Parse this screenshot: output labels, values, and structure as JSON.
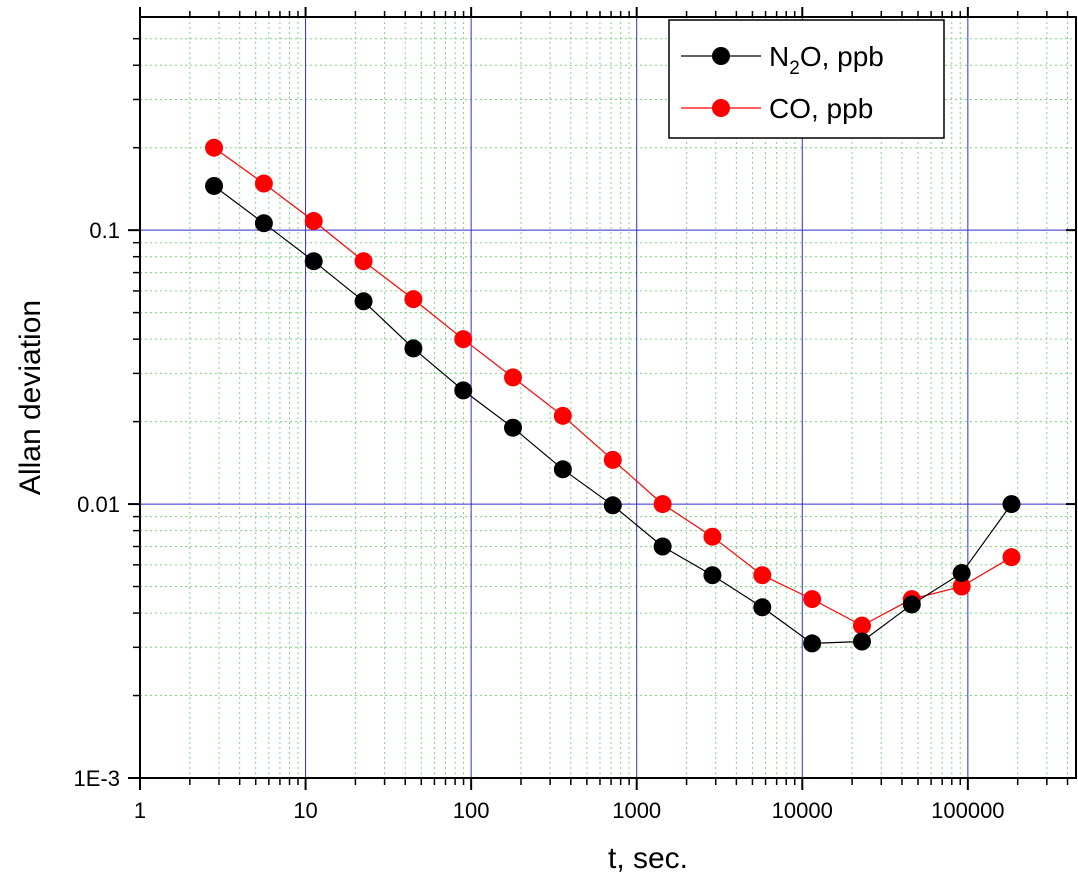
{
  "chart_data": {
    "type": "line",
    "xlabel": "t, sec.",
    "ylabel": "Allan deviation",
    "xscale": "log",
    "yscale": "log",
    "xlim": [
      1,
      450000
    ],
    "ylim": [
      0.001,
      0.6
    ],
    "x_tick_labels": [
      "1",
      "10",
      "100",
      "1000",
      "10000",
      "100000"
    ],
    "x_tick_values": [
      1,
      10,
      100,
      1000,
      10000,
      100000
    ],
    "y_tick_labels": [
      "1E-3",
      "0.01",
      "0.1"
    ],
    "y_tick_values": [
      0.001,
      0.01,
      0.1
    ],
    "grid": "major and minor",
    "legend_position": "top-right",
    "series": [
      {
        "name": "N2O, ppb",
        "legend_main": "N",
        "legend_sub": "2",
        "legend_rest": "O, ppb",
        "color": "#000000",
        "x": [
          2.8,
          5.6,
          11.2,
          22.4,
          44.8,
          89.6,
          179,
          358,
          717,
          1434,
          2867,
          5734,
          11469,
          22938,
          45875,
          91750,
          183500
        ],
        "y": [
          0.145,
          0.106,
          0.077,
          0.055,
          0.037,
          0.026,
          0.019,
          0.0134,
          0.0099,
          0.007,
          0.0055,
          0.0042,
          0.0031,
          0.00315,
          0.0043,
          0.0056,
          0.01
        ]
      },
      {
        "name": "CO, ppb",
        "legend_main": "CO, ppb",
        "legend_sub": "",
        "legend_rest": "",
        "color": "#ff0000",
        "x": [
          2.8,
          5.6,
          11.2,
          22.4,
          44.8,
          89.6,
          179,
          358,
          717,
          1434,
          2867,
          5734,
          11469,
          22938,
          45875,
          91750,
          183500
        ],
        "y": [
          0.2,
          0.148,
          0.108,
          0.077,
          0.056,
          0.04,
          0.029,
          0.021,
          0.0145,
          0.01,
          0.0076,
          0.0055,
          0.0045,
          0.0036,
          0.0045,
          0.005,
          0.0064
        ]
      }
    ]
  }
}
